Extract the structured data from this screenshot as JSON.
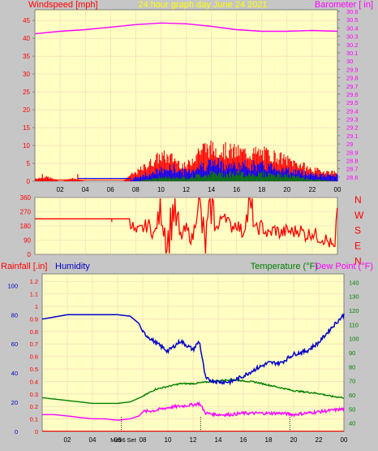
{
  "header": {
    "left_title": "Windspeed [mph]",
    "center_title": "24 hour graph day   June 24 2021",
    "right_title": "Barometer [ in]"
  },
  "colors": {
    "background": "#c6c6c6",
    "plot_bg": "#ffffc4",
    "grid": "#e8a8a8",
    "wind": "#ff0000",
    "wind_mid": "#0000ff",
    "wind_low": "#008000",
    "barometer": "#ff00ff",
    "humidity": "#0000c8",
    "temperature": "#008000",
    "dewpoint": "#ff00ff",
    "direction": "#ff0000"
  },
  "x_ticks": [
    "02",
    "04",
    "06",
    "08",
    "10",
    "12",
    "14",
    "16",
    "18",
    "20",
    "22",
    "00"
  ],
  "chart_data": [
    {
      "type": "line",
      "name": "wind-barometer",
      "title": "24 hour graph day   June 24 2021",
      "ylabel_left": "Windspeed [mph]",
      "ylabel_right": "Barometer [ in]",
      "left_axis": {
        "ticks": [
          0,
          5,
          10,
          15,
          20,
          25,
          30,
          35,
          40,
          45
        ],
        "ylim": [
          0,
          48
        ]
      },
      "right_axis": {
        "ticks": [
          "28.6",
          "28.7",
          "28.8",
          "28.9",
          "29",
          "29.1",
          "29.2",
          "29.3",
          "29.4",
          "29.5",
          "29.6",
          "29.7",
          "29.8",
          "29.9",
          "30",
          "30.1",
          "30.2",
          "30.3",
          "30.4",
          "30.5",
          "30.6"
        ],
        "ylim": [
          28.55,
          30.62
        ]
      },
      "xlim": [
        0,
        24
      ],
      "barometer": {
        "x": [
          0,
          2,
          4,
          6,
          8,
          10,
          12,
          14,
          16,
          18,
          20,
          22,
          24
        ],
        "y": [
          30.33,
          30.36,
          30.38,
          30.41,
          30.44,
          30.46,
          30.45,
          30.42,
          30.38,
          30.36,
          30.36,
          30.37,
          30.36
        ]
      },
      "wind_gust_envelope": {
        "x": [
          0,
          1,
          2,
          3,
          4,
          5,
          6,
          7,
          7.5,
          8,
          9,
          10,
          11,
          12,
          13,
          13.5,
          14,
          15,
          16,
          17,
          18,
          19,
          20,
          21,
          22,
          23,
          24
        ],
        "y": [
          1,
          1.5,
          0,
          1,
          0,
          0,
          0,
          0,
          2,
          3,
          6,
          9,
          8,
          5,
          11,
          12,
          11.5,
          11,
          10.5,
          10,
          10,
          9,
          7.5,
          6,
          4,
          3.5,
          3
        ]
      },
      "wind_average": {
        "x": [
          0,
          7.5,
          8,
          9,
          10,
          11,
          12,
          13,
          14,
          15,
          16,
          17,
          18,
          19,
          20,
          21,
          22,
          23,
          24
        ],
        "y": [
          0,
          0,
          1,
          2,
          3,
          3.5,
          2.5,
          4,
          5,
          4.5,
          4,
          4.5,
          4,
          4,
          3,
          2.5,
          2,
          1.5,
          1.5
        ]
      },
      "wind_low": {
        "x": [
          0,
          8,
          10,
          12,
          14,
          16,
          18,
          20,
          22,
          24
        ],
        "y": [
          0,
          0,
          1,
          1,
          2,
          2,
          2,
          1.5,
          0.5,
          0
        ]
      }
    },
    {
      "type": "line",
      "name": "wind-direction",
      "ylim": [
        0,
        360
      ],
      "left_ticks": [
        0,
        90,
        180,
        270,
        360
      ],
      "right_labels": [
        "N",
        "W",
        "S",
        "E",
        "N"
      ],
      "x": [
        0,
        3,
        6,
        7.5,
        8,
        8.5,
        9,
        9.5,
        10,
        10.5,
        11,
        11.5,
        12,
        12.5,
        13,
        13.5,
        14,
        14.5,
        15,
        15.5,
        16,
        16.5,
        17,
        17.5,
        18,
        18.5,
        19,
        19.5,
        20,
        20.5,
        21,
        21.5,
        22,
        22.5,
        23,
        23.5,
        23.8,
        24
      ],
      "y": [
        225,
        225,
        225,
        225,
        130,
        160,
        190,
        120,
        330,
        60,
        300,
        100,
        160,
        90,
        340,
        40,
        320,
        150,
        280,
        170,
        200,
        130,
        320,
        150,
        180,
        120,
        160,
        130,
        150,
        140,
        160,
        120,
        140,
        110,
        100,
        60,
        20,
        350
      ]
    },
    {
      "type": "line",
      "name": "rain-humidity-temp",
      "ylabel_left": "Rainfall [.in]",
      "ylabel_left2": "Humidity",
      "ylabel_right": "Temperature (°F)",
      "ylabel_right2": "Dew Point (°F)",
      "rain_ticks": [
        "0",
        "0.1",
        "0.2",
        "0.3",
        "0.4",
        "0.5",
        "0.6",
        "0.7",
        "0.8",
        "0.9",
        "1",
        "1.1",
        "1.2"
      ],
      "humidity_ticks": [
        0,
        20,
        40,
        60,
        80,
        100
      ],
      "temp_ticks": [
        40,
        50,
        60,
        70,
        80,
        90,
        100,
        110,
        120,
        130,
        140
      ],
      "temp_ylim": [
        34,
        146
      ],
      "humidity": {
        "x": [
          0,
          2,
          4,
          6,
          7,
          7.7,
          8,
          9,
          10,
          11,
          12,
          12.5,
          13,
          14,
          15,
          16,
          17,
          18,
          19,
          20,
          21,
          22,
          23,
          24
        ],
        "y": [
          77,
          80,
          80,
          80,
          79,
          74,
          68,
          61,
          55,
          62,
          56,
          62,
          36,
          34,
          34,
          38,
          43,
          47,
          47,
          53,
          55,
          61,
          71,
          80
        ]
      },
      "temperature": {
        "x": [
          0,
          1,
          2,
          3,
          4,
          5,
          6,
          7,
          8,
          9,
          10,
          11,
          12,
          13,
          14,
          15,
          16,
          17,
          18,
          19,
          20,
          21,
          22,
          23,
          24
        ],
        "y": [
          58,
          57,
          56,
          55,
          54,
          54,
          54,
          55,
          59,
          64,
          66,
          68,
          68,
          69,
          70,
          71,
          70,
          69,
          67,
          65,
          63,
          62,
          61,
          59,
          58
        ]
      },
      "dewpoint": {
        "x": [
          0,
          1,
          2,
          3,
          4,
          5,
          6,
          7,
          7.7,
          8,
          9,
          10,
          11,
          12,
          12.5,
          13,
          14,
          15,
          16,
          17,
          18,
          19,
          20,
          21,
          22,
          23,
          24
        ],
        "y": [
          46,
          46,
          45,
          44,
          43,
          43,
          42,
          43,
          45,
          48,
          49,
          51,
          52,
          53,
          54,
          47,
          46,
          46,
          47,
          47,
          47,
          47,
          46,
          47,
          48,
          49,
          50
        ]
      },
      "rain": {
        "x": [
          0,
          24
        ],
        "y": [
          0,
          0
        ]
      },
      "markers": {
        "dotted_x": [
          6.3,
          12.6,
          19.7
        ],
        "labels": [
          "Mo",
          "96",
          "Set"
        ]
      }
    }
  ]
}
